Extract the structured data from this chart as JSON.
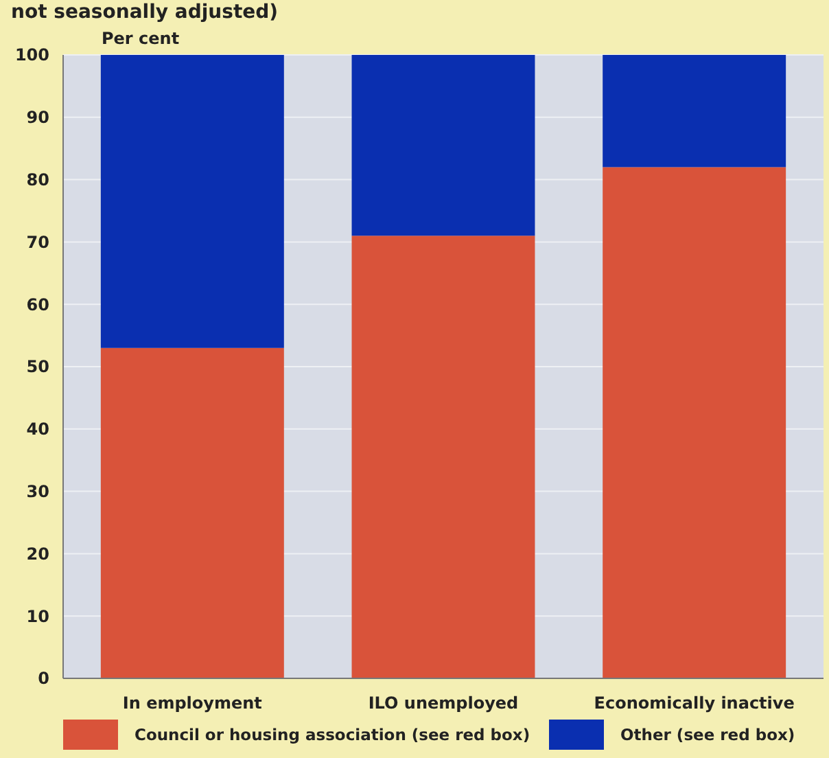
{
  "chart_data": {
    "type": "bar",
    "title": "not seasonally adjusted)",
    "ylabel": "Per cent",
    "categories": [
      "In employment",
      "ILO unemployed",
      "Economically inactive"
    ],
    "stacked": true,
    "series": [
      {
        "name": "Council or housing association (see red box)",
        "color": "#d9533a",
        "values": [
          53,
          71,
          82
        ]
      },
      {
        "name": "Other (see red box)",
        "color": "#0a2fb0",
        "values": [
          47,
          29,
          18
        ]
      }
    ],
    "ylim": [
      0,
      100
    ],
    "yticks": [
      0,
      10,
      20,
      30,
      40,
      50,
      60,
      70,
      80,
      90,
      100
    ],
    "grid": "y",
    "legend": "bottom"
  }
}
